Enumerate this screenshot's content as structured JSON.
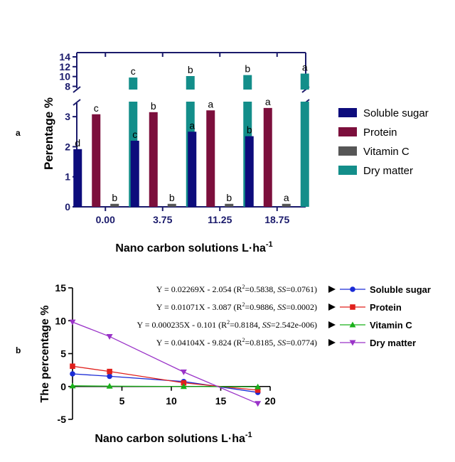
{
  "panels": {
    "a_label": "a",
    "b_label": "b"
  },
  "chart_data": [
    {
      "type": "bar",
      "panel": "a",
      "title": "",
      "xlabel": "Nano carbon solutions L·ha",
      "xlabel_sup": "-1",
      "ylabel": "Perentage %",
      "categories": [
        "0.00",
        "3.75",
        "11.25",
        "18.75"
      ],
      "ylim_lower": [
        0,
        3.5
      ],
      "ylim_upper": [
        7.5,
        14
      ],
      "yticks_lower": [
        "0",
        "1",
        "2",
        "3"
      ],
      "yticks_upper": [
        "8",
        "10",
        "12",
        "14"
      ],
      "axis_break": [
        3.5,
        7.5
      ],
      "legend_position": "right",
      "series": [
        {
          "name": "Soluble sugar",
          "color": "#0d0c7c",
          "values": [
            1.92,
            2.2,
            2.5,
            2.35
          ],
          "letters": [
            "d",
            "c",
            "a",
            "b"
          ]
        },
        {
          "name": "Protein",
          "color": "#7c0f3c",
          "values": [
            3.08,
            3.15,
            3.21,
            3.29
          ],
          "letters": [
            "c",
            "b",
            "a",
            "a"
          ]
        },
        {
          "name": "Vitamin C",
          "color": "#565656",
          "values": [
            0.1,
            0.1,
            0.1,
            0.1
          ],
          "letters": [
            "b",
            "b",
            "b",
            "a"
          ]
        },
        {
          "name": "Dry matter",
          "color": "#138e8a",
          "values": [
            9.8,
            10.1,
            10.3,
            10.6
          ],
          "letters": [
            "c",
            "b",
            "b",
            "a"
          ]
        }
      ]
    },
    {
      "type": "line",
      "panel": "b",
      "title": "",
      "xlabel": "Nano carbon solutions L·ha",
      "xlabel_sup": "-1",
      "ylabel": "The percentage %",
      "xlim": [
        0,
        20
      ],
      "ylim": [
        -5,
        15
      ],
      "xticks": [
        "5",
        "10",
        "15",
        "20"
      ],
      "yticks": [
        "15",
        "10",
        "5",
        "0",
        "-5"
      ],
      "x": [
        0,
        3.75,
        11.25,
        18.75
      ],
      "legend_position": "right",
      "series": [
        {
          "name": "Soluble sugar",
          "color": "#1a2bd6",
          "marker": "circle",
          "values": [
            1.92,
            1.55,
            0.75,
            -0.9
          ],
          "equation": {
            "pre": "Y = 0.02269X - 2.054 (R",
            "sup": "2",
            "mid": "=0.5838, ",
            "ss": "SS",
            "post": "=0.0761)"
          }
        },
        {
          "name": "Protein",
          "color": "#e0201c",
          "marker": "square",
          "values": [
            3.08,
            2.28,
            0.55,
            -0.55
          ],
          "equation": {
            "pre": "Y = 0.01071X - 3.087 (R",
            "sup": "2",
            "mid": "=0.9886, ",
            "ss": "SS",
            "post": "=0.0002)"
          }
        },
        {
          "name": "Vitamin C",
          "color": "#19b019",
          "marker": "triangle-up",
          "values": [
            0.1,
            0.05,
            0.0,
            -0.05
          ],
          "equation": {
            "pre": "Y = 0.000235X - 0.101 (R",
            "sup": "2",
            "mid": "=0.8184, ",
            "ss": "SS",
            "post": "=2.542e-006)"
          }
        },
        {
          "name": "Dry matter",
          "color": "#9a33c8",
          "marker": "triangle-down",
          "values": [
            9.8,
            7.6,
            2.2,
            -2.6
          ],
          "equation": {
            "pre": "Y = 0.04104X - 9.824 (R",
            "sup": "2",
            "mid": "=0.8185, ",
            "ss": "SS",
            "post": "=0.0774)"
          }
        }
      ]
    }
  ]
}
